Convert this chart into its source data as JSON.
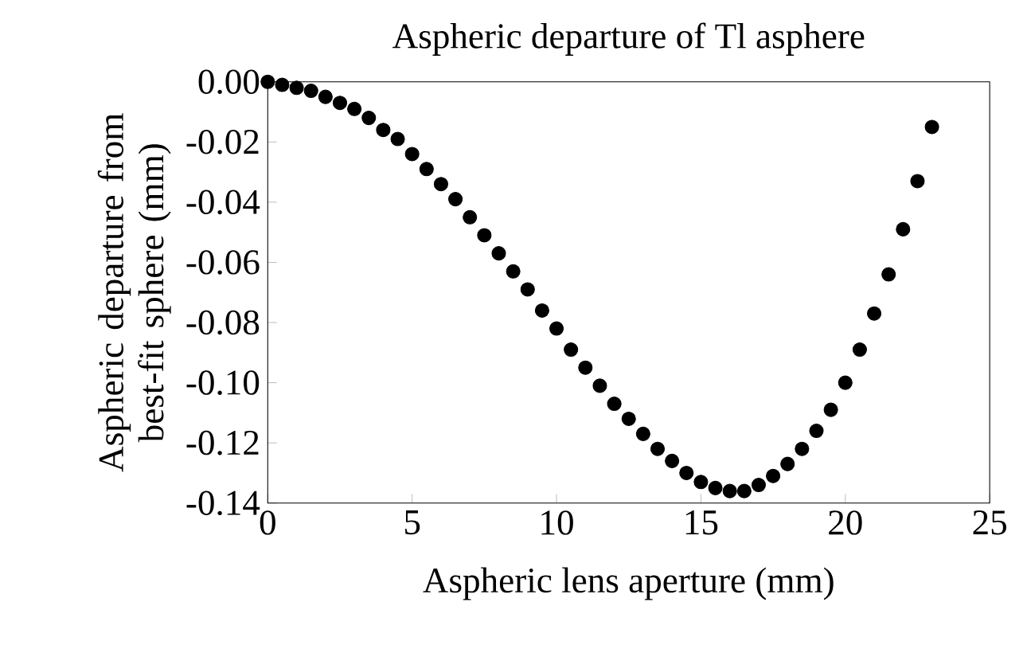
{
  "chart_data": {
    "type": "scatter",
    "title": "Aspheric departure of Tl asphere",
    "xlabel": "Aspheric lens aperture (mm)",
    "ylabel": "Aspheric departure from best-fit sphere (mm)",
    "x": [
      0,
      0.5,
      1,
      1.5,
      2,
      2.5,
      3,
      3.5,
      4,
      4.5,
      5,
      5.5,
      6,
      6.5,
      7,
      7.5,
      8,
      8.5,
      9,
      9.5,
      10,
      10.5,
      11,
      11.5,
      12,
      12.5,
      13,
      13.5,
      14,
      14.5,
      15,
      15.5,
      16,
      16.5,
      17,
      17.5,
      18,
      18.5,
      19,
      19.5,
      20,
      20.5,
      21,
      21.5,
      22,
      22.5,
      23
    ],
    "values": [
      0,
      -0.001,
      -0.002,
      -0.003,
      -0.005,
      -0.007,
      -0.009,
      -0.012,
      -0.016,
      -0.019,
      -0.024,
      -0.029,
      -0.034,
      -0.039,
      -0.045,
      -0.051,
      -0.057,
      -0.063,
      -0.069,
      -0.076,
      -0.082,
      -0.089,
      -0.095,
      -0.101,
      -0.107,
      -0.112,
      -0.117,
      -0.122,
      -0.126,
      -0.13,
      -0.133,
      -0.135,
      -0.136,
      -0.136,
      -0.134,
      -0.131,
      -0.127,
      -0.122,
      -0.116,
      -0.109,
      -0.1,
      -0.089,
      -0.077,
      -0.064,
      -0.049,
      -0.033,
      -0.015
    ],
    "color": "#000000",
    "xlim": [
      0,
      25
    ],
    "xticks": [
      0,
      5,
      10,
      15,
      20,
      25
    ],
    "ylim": [
      -0.14,
      0
    ],
    "yticks": [
      {
        "value": -0.14,
        "label": "-0.14"
      },
      {
        "value": -0.12,
        "label": "-0.12"
      },
      {
        "value": -0.1,
        "label": "-0.10"
      },
      {
        "value": -0.08,
        "label": "-0.08"
      },
      {
        "value": -0.06,
        "label": "-0.06"
      },
      {
        "value": -0.04,
        "label": "-0.04"
      },
      {
        "value": -0.02,
        "label": "-0.02"
      },
      {
        "value": 0,
        "label": "0.00"
      }
    ]
  }
}
